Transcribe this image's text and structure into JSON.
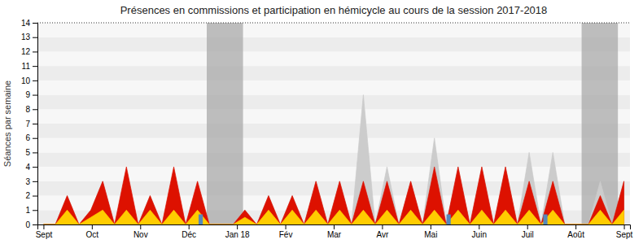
{
  "chart_data": {
    "type": "area",
    "title": "Présences en commissions et participation en hémicycle au cours de la session 2017-2018",
    "y_label": "Séances par semaine",
    "x": [
      0,
      0.979592,
      1.959184,
      2.938776,
      3.918367,
      4.897959,
      5.877551,
      6.857143,
      7.836735,
      8.816327,
      9.795918,
      10.77551,
      11.755102,
      12.734694,
      13.714286,
      14.693878,
      15.673469,
      16.653061,
      17.632653,
      18.612245,
      19.591837,
      20.571429,
      21.55102,
      22.530612,
      23.510204,
      24.489796,
      25.469388,
      26.44898,
      27.428571,
      28.408163,
      29.387755,
      30.367347,
      31.346939,
      32.326531,
      33.306122,
      34.285714,
      35.265306,
      36.244898,
      37.22449,
      38.204082,
      39.183673,
      40.163265,
      41.142857,
      42.122449,
      43.102041,
      44.081633,
      45.061224,
      46.040816,
      47.020408,
      48
    ],
    "xlim": [
      -0.5,
      48.5
    ],
    "xticks": [
      {
        "value": 0,
        "label": "Sept"
      },
      {
        "value": 4,
        "label": "Oct"
      },
      {
        "value": 8,
        "label": "Nov"
      },
      {
        "value": 12,
        "label": "Déc"
      },
      {
        "value": 16,
        "label": "Jan 18"
      },
      {
        "value": 20,
        "label": "Fév"
      },
      {
        "value": 24,
        "label": "Mar"
      },
      {
        "value": 28,
        "label": "Avr"
      },
      {
        "value": 32,
        "label": "Mai"
      },
      {
        "value": 36,
        "label": "Juin"
      },
      {
        "value": 40,
        "label": "Juil"
      },
      {
        "value": 44,
        "label": "Août"
      },
      {
        "value": 48,
        "label": "Sept"
      }
    ],
    "ylim": [
      0,
      14
    ],
    "yticks": [
      0,
      1,
      2,
      3,
      4,
      5,
      6,
      7,
      8,
      9,
      10,
      11,
      12,
      13,
      14
    ],
    "grid": true,
    "shaded_ranges": [
      {
        "x0": 13.5,
        "x1": 16.5,
        "color": "#aaaaaa"
      },
      {
        "x0": 44.5,
        "x1": 47.5,
        "color": "#aaaaaa"
      }
    ],
    "hlines": [
      14
    ],
    "series": [
      {
        "type": "area",
        "color": "#cccccc",
        "values": [
          0.0,
          0.0,
          2.0,
          0.0,
          1.0,
          3.0,
          0.0,
          3.0,
          0.0,
          2.0,
          0.0,
          3.0,
          0.0,
          2.0,
          0.0,
          0.0,
          0.0,
          1.0,
          0.0,
          2.0,
          0.0,
          2.0,
          0.0,
          3.0,
          0.0,
          3.0,
          0.0,
          9.0,
          0.0,
          4.0,
          0.0,
          3.0,
          0.0,
          6.0,
          0.0,
          4.0,
          0.0,
          4.0,
          0.0,
          4.0,
          0.0,
          5.0,
          0.0,
          5.0,
          0.0,
          0.0,
          0.0,
          3.0,
          0.0,
          3.0
        ]
      },
      {
        "type": "area",
        "color": "#dd1100",
        "values": [
          0.0,
          0.0,
          2.0,
          0.0,
          1.0,
          3.0,
          0.0,
          4.0,
          0.0,
          2.0,
          0.0,
          4.0,
          0.0,
          3.0,
          0.0,
          0.0,
          0.0,
          1.0,
          0.0,
          2.0,
          0.0,
          2.0,
          0.0,
          3.0,
          0.0,
          3.0,
          0.0,
          3.0,
          0.0,
          3.0,
          0.0,
          3.0,
          0.0,
          4.0,
          0.0,
          4.0,
          0.0,
          4.0,
          0.0,
          4.0,
          0.0,
          3.0,
          0.0,
          3.0,
          0.0,
          0.0,
          0.0,
          2.0,
          0.0,
          3.0
        ]
      },
      {
        "type": "area",
        "color": "#ffcc00",
        "values": [
          0.0,
          0.0,
          1.0,
          0.0,
          0.5,
          1.0,
          0.0,
          1.0,
          0.0,
          1.0,
          0.0,
          1.0,
          0.0,
          1.0,
          0.0,
          0.0,
          0.0,
          0.5,
          0.0,
          1.0,
          0.0,
          1.0,
          0.0,
          1.0,
          0.0,
          1.0,
          0.0,
          1.0,
          0.0,
          1.0,
          0.0,
          1.0,
          0.0,
          1.0,
          0.0,
          1.0,
          0.0,
          1.0,
          0.0,
          1.0,
          0.0,
          1.0,
          0.0,
          1.0,
          0.0,
          0.0,
          0.0,
          1.0,
          0.0,
          1.0
        ]
      },
      {
        "type": "bar",
        "color": "#5588bb",
        "x": [
          13.0,
          33.5,
          41.5
        ],
        "values": [
          0.7,
          0.7,
          0.7
        ]
      }
    ]
  }
}
